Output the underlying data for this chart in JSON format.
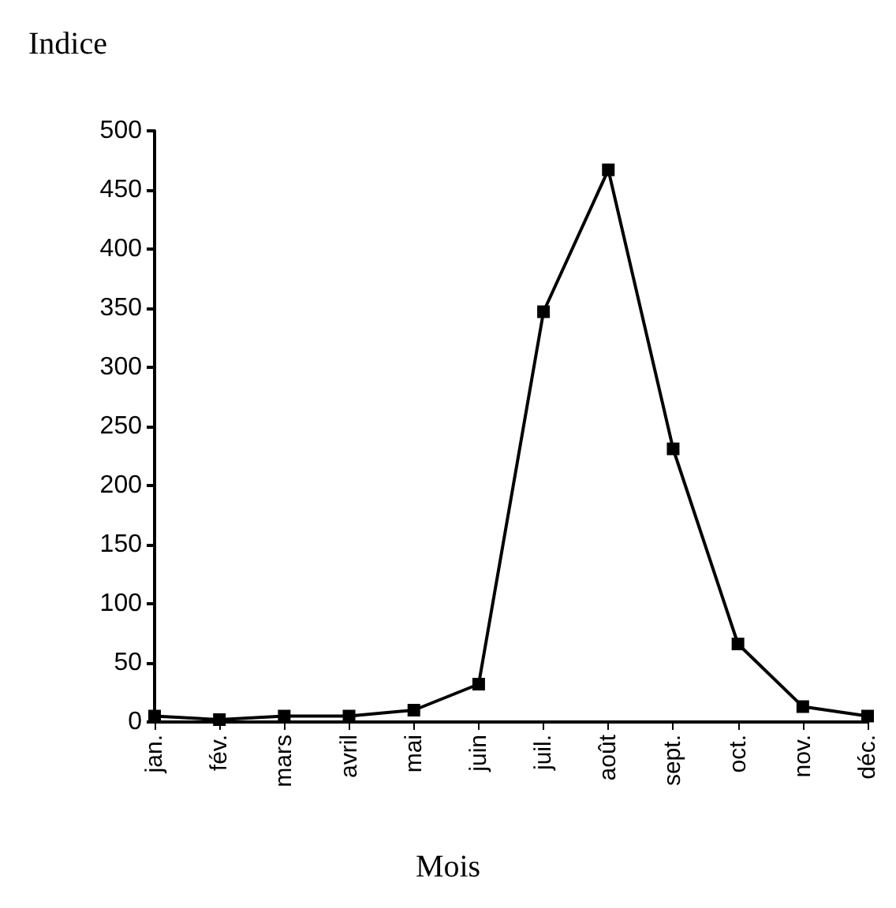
{
  "chart_data": {
    "type": "line",
    "ylabel": "Indice",
    "xlabel": "Mois",
    "categories": [
      "jan.",
      "fév.",
      "mars",
      "avril",
      "mai",
      "juin",
      "juil.",
      "août",
      "sept.",
      "oct.",
      "nov.",
      "déc."
    ],
    "series": [
      {
        "color": "#000000",
        "values": [
          5,
          2,
          5,
          5,
          10,
          32,
          347,
          467,
          231,
          66,
          13,
          5
        ]
      }
    ],
    "ylim": [
      0,
      500
    ],
    "yticks": [
      0,
      50,
      100,
      150,
      200,
      250,
      300,
      350,
      400,
      450,
      500
    ],
    "grid": false,
    "marker": "square",
    "line_style": "solid"
  }
}
